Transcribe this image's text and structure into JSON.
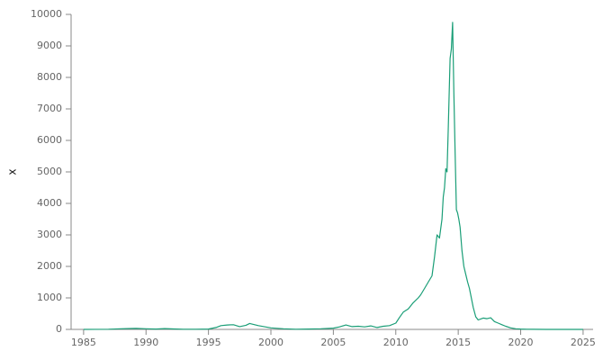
{
  "chart_data": {
    "type": "line",
    "title": "",
    "xlabel": "",
    "ylabel": "x",
    "xlim": [
      1984.0,
      2025.8
    ],
    "ylim": [
      0,
      10000
    ],
    "x_ticks": [
      1985,
      1990,
      1995,
      2000,
      2005,
      2010,
      2015,
      2020,
      2025
    ],
    "y_ticks": [
      0,
      1000,
      2000,
      3000,
      4000,
      5000,
      6000,
      7000,
      8000,
      9000,
      10000
    ],
    "grid": false,
    "line_color": "#1a9e77",
    "series": [
      {
        "name": "",
        "x": [
          1985,
          1987,
          1988.5,
          1989.2,
          1990,
          1990.8,
          1991.5,
          1992.2,
          1993,
          1994,
          1995,
          1995.6,
          1996,
          1996.5,
          1997,
          1997.5,
          1998,
          1998.3,
          1999,
          2000,
          2001,
          2002,
          2003,
          2004,
          2005,
          2005.5,
          2006,
          2006.5,
          2007,
          2007.5,
          2008,
          2008.5,
          2009,
          2009.5,
          2010,
          2010.3,
          2010.6,
          2011,
          2011.4,
          2011.8,
          2012,
          2012.3,
          2012.6,
          2012.9,
          2013.1,
          2013.3,
          2013.5,
          2013.7,
          2013.8,
          2013.9,
          2014,
          2014.1,
          2014.2,
          2014.35,
          2014.45,
          2014.55,
          2014.65,
          2014.75,
          2014.85,
          2014.95,
          2015.05,
          2015.15,
          2015.3,
          2015.45,
          2015.6,
          2015.75,
          2015.9,
          2016.05,
          2016.2,
          2016.4,
          2016.6,
          2016.8,
          2017,
          2017.3,
          2017.6,
          2017.9,
          2018.2,
          2018.5,
          2018.8,
          2019.2,
          2019.6,
          2020,
          2020.5,
          2021,
          2022,
          2023,
          2024,
          2025
        ],
        "values": [
          0,
          5,
          25,
          30,
          20,
          10,
          25,
          15,
          5,
          5,
          10,
          60,
          120,
          140,
          150,
          90,
          130,
          190,
          120,
          50,
          20,
          5,
          10,
          20,
          40,
          80,
          140,
          90,
          100,
          80,
          110,
          60,
          100,
          120,
          200,
          380,
          550,
          650,
          850,
          1000,
          1100,
          1300,
          1500,
          1700,
          2300,
          3000,
          2900,
          3500,
          4200,
          4500,
          5100,
          5000,
          6300,
          8600,
          8900,
          9750,
          7500,
          5600,
          3800,
          3700,
          3500,
          3250,
          2500,
          2000,
          1750,
          1500,
          1300,
          1000,
          700,
          400,
          300,
          330,
          360,
          340,
          370,
          250,
          200,
          150,
          100,
          50,
          20,
          10,
          5,
          2,
          0,
          0,
          0,
          0
        ]
      }
    ]
  }
}
